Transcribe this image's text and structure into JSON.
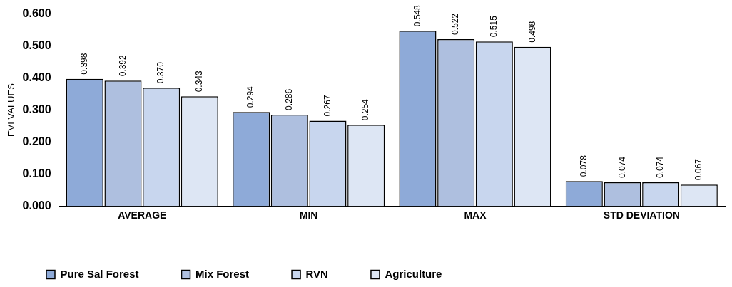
{
  "chart_data": {
    "type": "bar",
    "ylabel": "EVI VALUES",
    "categories": [
      "AVERAGE",
      "MIN",
      "MAX",
      "STD DEVIATION"
    ],
    "series": [
      {
        "name": "Pure Sal Forest",
        "color": "#8eaad8",
        "values": [
          0.398,
          0.294,
          0.548,
          0.078
        ],
        "value_labels": [
          "0.398",
          "0.294",
          "0.548",
          "0.078"
        ]
      },
      {
        "name": "Mix Forest",
        "color": "#aebfdf",
        "values": [
          0.392,
          0.286,
          0.522,
          0.074
        ],
        "value_labels": [
          "0.392",
          "0.286",
          "0.522",
          "0.074"
        ]
      },
      {
        "name": "RVN",
        "color": "#c8d6ee",
        "values": [
          0.37,
          0.267,
          0.515,
          0.074
        ],
        "value_labels": [
          "0.370",
          "0.267",
          "0.515",
          "0.074"
        ]
      },
      {
        "name": "Agriculture",
        "color": "#dde6f4",
        "values": [
          0.343,
          0.254,
          0.498,
          0.067
        ],
        "value_labels": [
          "0.343",
          "0.254",
          "0.498",
          "0.067"
        ]
      }
    ],
    "ylim": [
      0,
      0.6
    ],
    "yticks": [
      {
        "value": 0,
        "label": "0.000"
      },
      {
        "value": 0.1,
        "label": "0.100"
      },
      {
        "value": 0.2,
        "label": "0.200"
      },
      {
        "value": 0.3,
        "label": "0.300"
      },
      {
        "value": 0.4,
        "label": "0.400"
      },
      {
        "value": 0.5,
        "label": "0.500"
      },
      {
        "value": 0.6,
        "label": "0.600"
      }
    ],
    "grid": false,
    "legend": "bottom left"
  }
}
